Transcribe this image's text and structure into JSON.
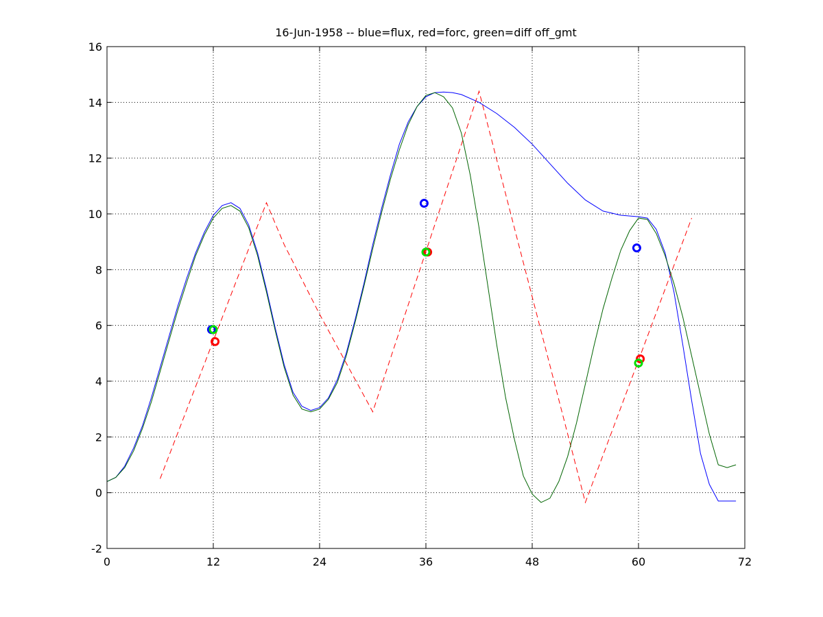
{
  "chart_data": {
    "type": "line",
    "title": "16-Jun-1958 -- blue=flux, red=forc, green=diff off_gmt",
    "xlabel": "",
    "ylabel": "",
    "xlim": [
      0,
      72
    ],
    "ylim": [
      -2,
      16
    ],
    "xticks": [
      0,
      12,
      24,
      36,
      48,
      60,
      72
    ],
    "yticks": [
      -2,
      0,
      2,
      4,
      6,
      8,
      10,
      12,
      14,
      16
    ],
    "grid": true,
    "series": [
      {
        "color": "#0000ff",
        "style": "solid",
        "x": [
          0,
          1,
          2,
          3,
          4,
          5,
          6,
          7,
          8,
          9,
          10,
          11,
          12,
          13,
          14,
          15,
          16,
          17,
          18,
          19,
          20,
          21,
          22,
          23,
          24,
          25,
          26,
          27,
          28,
          29,
          30,
          31,
          32,
          33,
          34,
          35,
          36,
          37,
          38,
          39,
          40,
          42,
          44,
          46,
          48,
          50,
          52,
          54,
          56,
          58,
          60,
          61,
          62,
          63,
          64,
          65,
          66,
          67,
          68,
          69,
          70,
          71
        ],
        "y": [
          0.4,
          0.55,
          0.95,
          1.6,
          2.4,
          3.4,
          4.5,
          5.6,
          6.7,
          7.7,
          8.6,
          9.35,
          9.95,
          10.3,
          10.4,
          10.2,
          9.6,
          8.6,
          7.3,
          5.9,
          4.6,
          3.6,
          3.1,
          2.95,
          3.05,
          3.4,
          4.05,
          5.0,
          6.2,
          7.5,
          8.9,
          10.2,
          11.4,
          12.5,
          13.3,
          13.85,
          14.2,
          14.35,
          14.37,
          14.35,
          14.28,
          14.0,
          13.6,
          13.1,
          12.5,
          11.8,
          11.1,
          10.5,
          10.1,
          9.95,
          9.9,
          9.85,
          9.45,
          8.6,
          7.2,
          5.3,
          3.3,
          1.4,
          0.3,
          -0.3,
          -0.3,
          -0.3
        ]
      },
      {
        "color": "#ff0000",
        "style": "dashed",
        "x": [
          6,
          18,
          20,
          24,
          30,
          42,
          54,
          66
        ],
        "y": [
          0.5,
          10.4,
          8.9,
          6.4,
          2.9,
          14.4,
          -0.35,
          9.85
        ]
      },
      {
        "color": "#006400",
        "style": "solid",
        "x": [
          0,
          1,
          2,
          3,
          4,
          5,
          6,
          7,
          8,
          9,
          10,
          11,
          12,
          13,
          14,
          15,
          16,
          17,
          18,
          19,
          20,
          21,
          22,
          23,
          24,
          25,
          26,
          27,
          28,
          29,
          30,
          31,
          32,
          33,
          34,
          35,
          36,
          37,
          38,
          39,
          40,
          41,
          42,
          43,
          44,
          45,
          46,
          47,
          48,
          49,
          50,
          51,
          52,
          53,
          54,
          55,
          56,
          57,
          58,
          59,
          60,
          61,
          62,
          63,
          64,
          65,
          66,
          67,
          68,
          69,
          70,
          71
        ],
        "y": [
          0.4,
          0.55,
          0.9,
          1.5,
          2.3,
          3.25,
          4.35,
          5.45,
          6.55,
          7.55,
          8.5,
          9.25,
          9.85,
          10.2,
          10.3,
          10.1,
          9.5,
          8.5,
          7.2,
          5.8,
          4.5,
          3.5,
          3.0,
          2.9,
          3.0,
          3.35,
          3.95,
          4.9,
          6.1,
          7.4,
          8.75,
          10.05,
          11.25,
          12.3,
          13.2,
          13.85,
          14.25,
          14.35,
          14.2,
          13.8,
          12.9,
          11.4,
          9.5,
          7.4,
          5.3,
          3.4,
          1.9,
          0.6,
          -0.05,
          -0.35,
          -0.2,
          0.4,
          1.3,
          2.5,
          3.9,
          5.3,
          6.6,
          7.7,
          8.7,
          9.4,
          9.85,
          9.8,
          9.3,
          8.5,
          7.5,
          6.3,
          4.9,
          3.5,
          2.1,
          1.0,
          0.9,
          1.0
        ]
      }
    ],
    "markers": [
      {
        "color": "#0000ff",
        "x": 11.8,
        "y": 5.85
      },
      {
        "color": "#00dd00",
        "x": 12.0,
        "y": 5.85
      },
      {
        "color": "#ff0000",
        "x": 12.2,
        "y": 5.42
      },
      {
        "color": "#0000ff",
        "x": 35.8,
        "y": 10.38
      },
      {
        "color": "#ff0000",
        "x": 36.2,
        "y": 8.63
      },
      {
        "color": "#00dd00",
        "x": 36.0,
        "y": 8.63
      },
      {
        "color": "#0000ff",
        "x": 59.8,
        "y": 8.78
      },
      {
        "color": "#ff0000",
        "x": 60.2,
        "y": 4.8
      },
      {
        "color": "#00dd00",
        "x": 60.0,
        "y": 4.65
      }
    ]
  }
}
